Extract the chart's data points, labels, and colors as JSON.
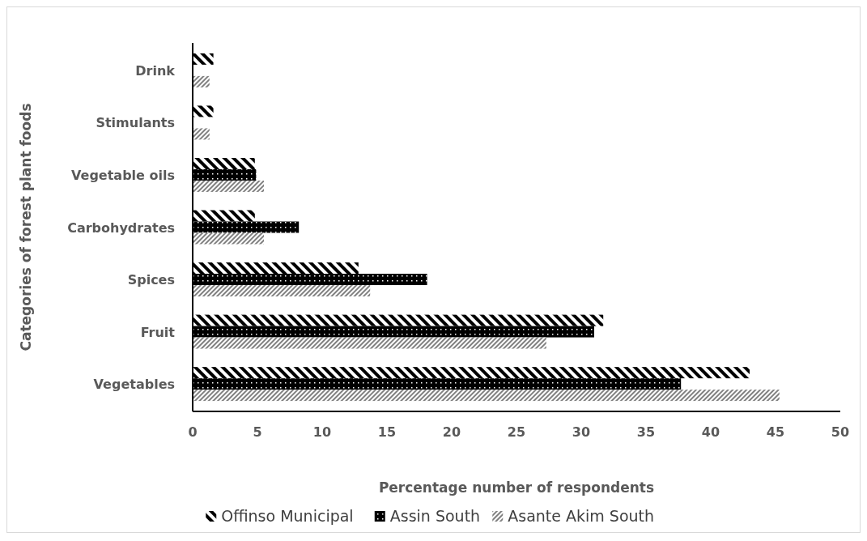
{
  "chart_data": {
    "type": "bar",
    "orientation": "horizontal",
    "xlabel": "Percentage number of respondents",
    "ylabel": "Categories of forest plant foods",
    "categories": [
      "Drink",
      "Stimulants",
      "Vegetable oils",
      "Carbohydrates",
      "Spices",
      "Fruit",
      "Vegetables"
    ],
    "series": [
      {
        "name": "Offinso Municipal",
        "color": "#000000",
        "values": [
          1.6,
          1.6,
          4.8,
          4.8,
          12.8,
          31.7,
          43
        ]
      },
      {
        "name": "Assin South",
        "color": "#000000",
        "values": [
          0,
          0,
          4.9,
          8.2,
          18.1,
          31,
          37.7
        ]
      },
      {
        "name": "Asante Akim South",
        "color": "#808080",
        "values": [
          1.3,
          1.3,
          5.5,
          5.5,
          13.7,
          27.3,
          45.3
        ]
      }
    ],
    "xlim": [
      0,
      50
    ],
    "xticks": [
      0,
      5,
      10,
      15,
      20,
      25,
      30,
      35,
      40,
      45,
      50
    ],
    "grid": false,
    "legend": "bottom"
  }
}
